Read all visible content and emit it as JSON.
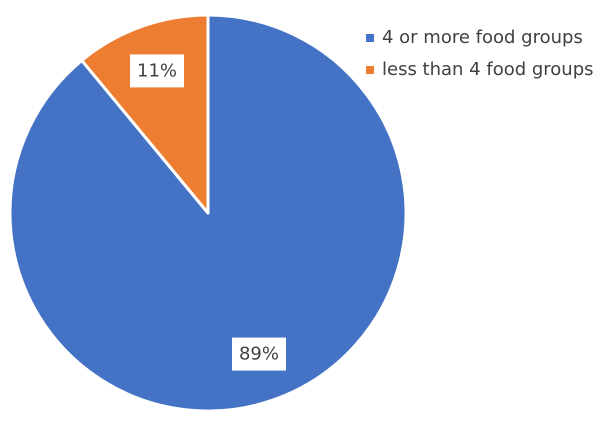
{
  "chart_data": {
    "type": "pie",
    "categories": [
      "4 or more food groups",
      "less than 4 food groups"
    ],
    "values": [
      89,
      11
    ],
    "value_labels": [
      "89%",
      "11%"
    ],
    "colors": [
      "#4472c4",
      "#ed7d31"
    ],
    "legend": "top-right"
  }
}
